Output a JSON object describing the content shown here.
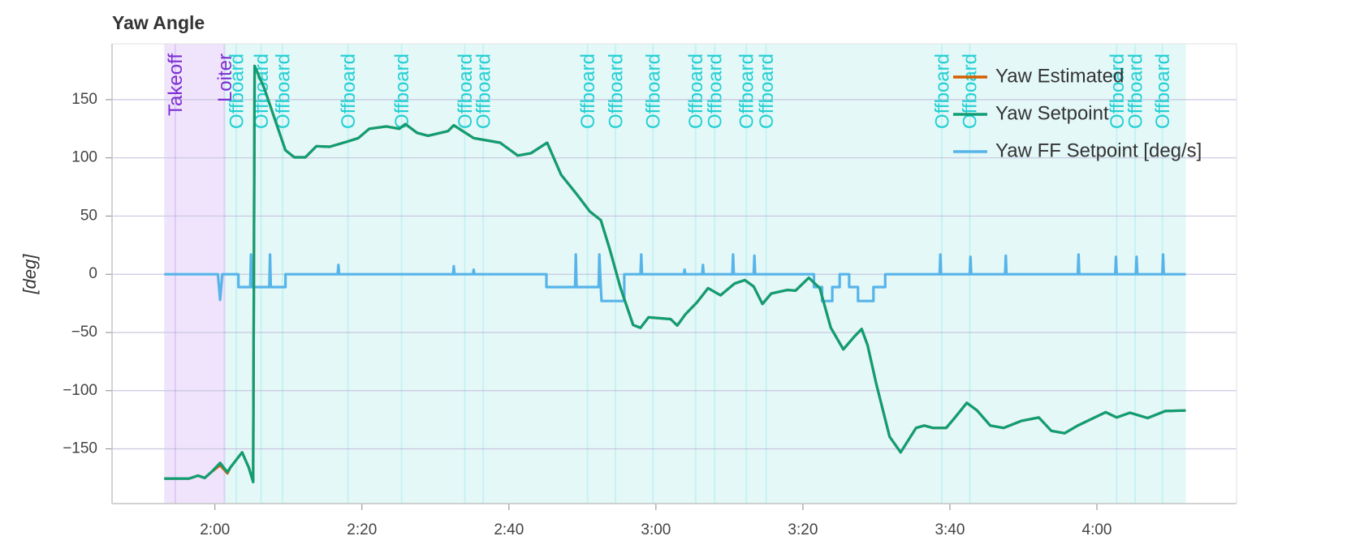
{
  "chart_data": {
    "type": "line",
    "title": "Yaw Angle",
    "y_label": "[deg]",
    "xlim": [
      106,
      259
    ],
    "ylim": [
      -197,
      198
    ],
    "xticks": [
      {
        "value": 120,
        "label": "2:00"
      },
      {
        "value": 140,
        "label": "2:20"
      },
      {
        "value": 160,
        "label": "2:40"
      },
      {
        "value": 180,
        "label": "3:00"
      },
      {
        "value": 200,
        "label": "3:20"
      },
      {
        "value": 220,
        "label": "3:40"
      },
      {
        "value": 240,
        "label": "4:00"
      }
    ],
    "yticks": [
      {
        "value": -150,
        "label": "−150"
      },
      {
        "value": -100,
        "label": "−100"
      },
      {
        "value": -50,
        "label": "−50"
      },
      0,
      50,
      100,
      150
    ],
    "grid": true,
    "legend": "top_right",
    "regions": [
      {
        "start": 113.1,
        "end": 121.3,
        "color": "#efe4fb"
      },
      {
        "start": 121.3,
        "end": 252.1,
        "color": "#e4f8f8"
      }
    ],
    "modes": [
      {
        "label": "Takeoff",
        "t": 114.6,
        "color": "#7d2ed3"
      },
      {
        "label": "Loiter",
        "t": 121.3,
        "color": "#7d2ed3"
      },
      {
        "label": "Offboard",
        "t": 122.9,
        "color": "#22cfd3"
      },
      {
        "label": "Offboard",
        "t": 126.3,
        "color": "#22cfd3"
      },
      {
        "label": "Offboard",
        "t": 129.2,
        "color": "#22cfd3"
      },
      {
        "label": "Offboard",
        "t": 138.1,
        "color": "#22cfd3"
      },
      {
        "label": "Offboard",
        "t": 145.4,
        "color": "#22cfd3"
      },
      {
        "label": "Offboard",
        "t": 154.0,
        "color": "#22cfd3"
      },
      {
        "label": "Offboard",
        "t": 156.5,
        "color": "#22cfd3"
      },
      {
        "label": "Offboard",
        "t": 170.7,
        "color": "#22cfd3"
      },
      {
        "label": "Offboard",
        "t": 174.5,
        "color": "#22cfd3"
      },
      {
        "label": "Offboard",
        "t": 179.6,
        "color": "#22cfd3"
      },
      {
        "label": "Offboard",
        "t": 185.4,
        "color": "#22cfd3"
      },
      {
        "label": "Offboard",
        "t": 188.0,
        "color": "#22cfd3"
      },
      {
        "label": "Offboard",
        "t": 192.3,
        "color": "#22cfd3"
      },
      {
        "label": "Offboard",
        "t": 195.0,
        "color": "#22cfd3"
      },
      {
        "label": "Offboard",
        "t": 218.9,
        "color": "#22cfd3"
      },
      {
        "label": "Offboard",
        "t": 222.7,
        "color": "#22cfd3"
      },
      {
        "label": "Offboard",
        "t": 242.7,
        "color": "#22cfd3"
      },
      {
        "label": "Offboard",
        "t": 245.2,
        "color": "#22cfd3"
      },
      {
        "label": "Offboard",
        "t": 248.9,
        "color": "#22cfd3"
      }
    ],
    "x": [
      113.1,
      116.5,
      117.7,
      118.6,
      119.5,
      120.7,
      121.7,
      122.1,
      123.7,
      124.6,
      125.2,
      125.4,
      126.7,
      128.1,
      129.6,
      130.8,
      132.3,
      133.8,
      135.6,
      138.0,
      139.5,
      141,
      143.3,
      145.1,
      145.9,
      147.5,
      149,
      151.7,
      152.5,
      155.2,
      158.8,
      161.2,
      163,
      165.2,
      167.1,
      169.2,
      171,
      172.5,
      173.7,
      175.2,
      176.9,
      177.9,
      179,
      182,
      182.9,
      184,
      185.6,
      187.1,
      188.8,
      190.7,
      192.1,
      193.3,
      194.5,
      195.7,
      197.9,
      199.0,
      200.8,
      202.3,
      203.8,
      205.5,
      207,
      208,
      208.8,
      210,
      211.8,
      213.3,
      215.4,
      216.5,
      217.7,
      219.5,
      220.7,
      222.3,
      223.7,
      225.5,
      227.3,
      229.7,
      232.1,
      233.8,
      235.6,
      237.4,
      239.2,
      241.2,
      242.7,
      244.5,
      246.9,
      249.3,
      252.1
    ],
    "series": [
      {
        "name": "Yaw Estimated",
        "color": "#d55e00",
        "values": [
          -175.5,
          -175.5,
          -173,
          -175,
          -170,
          -164,
          -171,
          -166,
          -153,
          -166,
          -178.5,
          179,
          160,
          134,
          106.5,
          100.5,
          100.5,
          110,
          109.5,
          114,
          117,
          125,
          127,
          125,
          129,
          121.5,
          119,
          123,
          128,
          117,
          113,
          102,
          104,
          113,
          85.5,
          69,
          54,
          46.5,
          22,
          -12,
          -43.5,
          -46,
          -37,
          -38.5,
          -44,
          -34.5,
          -24,
          -12,
          -18,
          -8,
          -5,
          -10.5,
          -25.5,
          -16.5,
          -13.5,
          -14,
          -3,
          -12,
          -46,
          -64.5,
          -53.5,
          -47,
          -61,
          -94.5,
          -139.5,
          -153,
          -132,
          -130,
          -132,
          -132,
          -123,
          -110.5,
          -117,
          -130,
          -132,
          -126,
          -123,
          -134.5,
          -136.5,
          -130,
          -124.5,
          -118.5,
          -123,
          -119,
          -123.5,
          -117.5,
          -117
        ]
      },
      {
        "name": "Yaw Setpoint",
        "color": "#0f9e74",
        "values": [
          -175.5,
          -175.5,
          -173,
          -175,
          -170,
          -162,
          -170,
          -166,
          -153,
          -166,
          -178.5,
          179,
          160,
          134,
          106.5,
          100.5,
          100.5,
          110,
          109.5,
          114,
          117,
          125,
          127,
          125,
          129,
          121.5,
          119,
          123,
          128,
          117,
          113,
          102,
          104,
          113,
          85.5,
          69,
          54,
          46.5,
          22,
          -12,
          -43.5,
          -46,
          -37,
          -38.5,
          -44,
          -34.5,
          -24,
          -12,
          -18,
          -8,
          -5,
          -10.5,
          -25.5,
          -16.5,
          -13.5,
          -14,
          -3,
          -12,
          -46,
          -64.5,
          -53.5,
          -47,
          -61,
          -94.5,
          -139.5,
          -153,
          -132,
          -130,
          -132,
          -132,
          -123,
          -110.5,
          -117,
          -130,
          -132,
          -126,
          -123,
          -134.5,
          -136.5,
          -130,
          -124.5,
          -118.5,
          -123,
          -119,
          -123.5,
          -117.5,
          -117
        ]
      },
      {
        "name": "Yaw FF Setpoint [deg/s]",
        "color": "#56b4e9",
        "x": [
          113.1,
          120.4,
          120.7,
          121,
          123.2,
          123.2,
          124.8,
          124.9,
          125.0,
          127.4,
          127.5,
          127.6,
          129.6,
          129.6,
          136.7,
          136.8,
          136.9,
          152.4,
          152.5,
          152.6,
          155.1,
          155.2,
          155.3,
          165.1,
          165.1,
          169.0,
          169.1,
          169.2,
          172.2,
          172.3,
          172.5,
          172.6,
          175.7,
          175.7,
          177.9,
          178,
          178.1,
          183.8,
          183.9,
          184.0,
          186.3,
          186.4,
          186.5,
          190.4,
          190.5,
          190.6,
          193.3,
          193.4,
          193.5,
          201.5,
          201.5,
          202.6,
          202.6,
          204.0,
          204.0,
          205.0,
          205.0,
          206.3,
          206.3,
          207.5,
          207.5,
          209.6,
          209.6,
          211.2,
          211.2,
          218.6,
          218.7,
          218.8,
          222.7,
          222.8,
          222.9,
          227.5,
          227.6,
          227.7,
          237.4,
          237.5,
          237.6,
          242.5,
          242.6,
          242.7,
          245.3,
          245.4,
          245.5,
          248.9,
          249,
          249.1,
          252.1
        ],
        "values": [
          0,
          0,
          -22,
          0,
          0,
          -11,
          -11,
          17,
          -11,
          -11,
          17,
          -11,
          -11,
          0,
          0,
          8,
          0,
          0,
          7,
          0,
          0,
          4,
          0,
          0,
          -11,
          -11,
          17,
          -11,
          -11,
          17,
          -11,
          -23,
          -23,
          0,
          0,
          17,
          0,
          0,
          4,
          0,
          0,
          8,
          0,
          0,
          17,
          0,
          0,
          16,
          0,
          0,
          -11,
          -11,
          -23,
          -23,
          -11,
          -11,
          0,
          0,
          -11,
          -11,
          -23,
          -23,
          -11,
          -11,
          0,
          0,
          17,
          0,
          0,
          15,
          0,
          0,
          16,
          0,
          0,
          17,
          0,
          0,
          15,
          0,
          0,
          15,
          0,
          0,
          17,
          0,
          0
        ]
      }
    ]
  }
}
